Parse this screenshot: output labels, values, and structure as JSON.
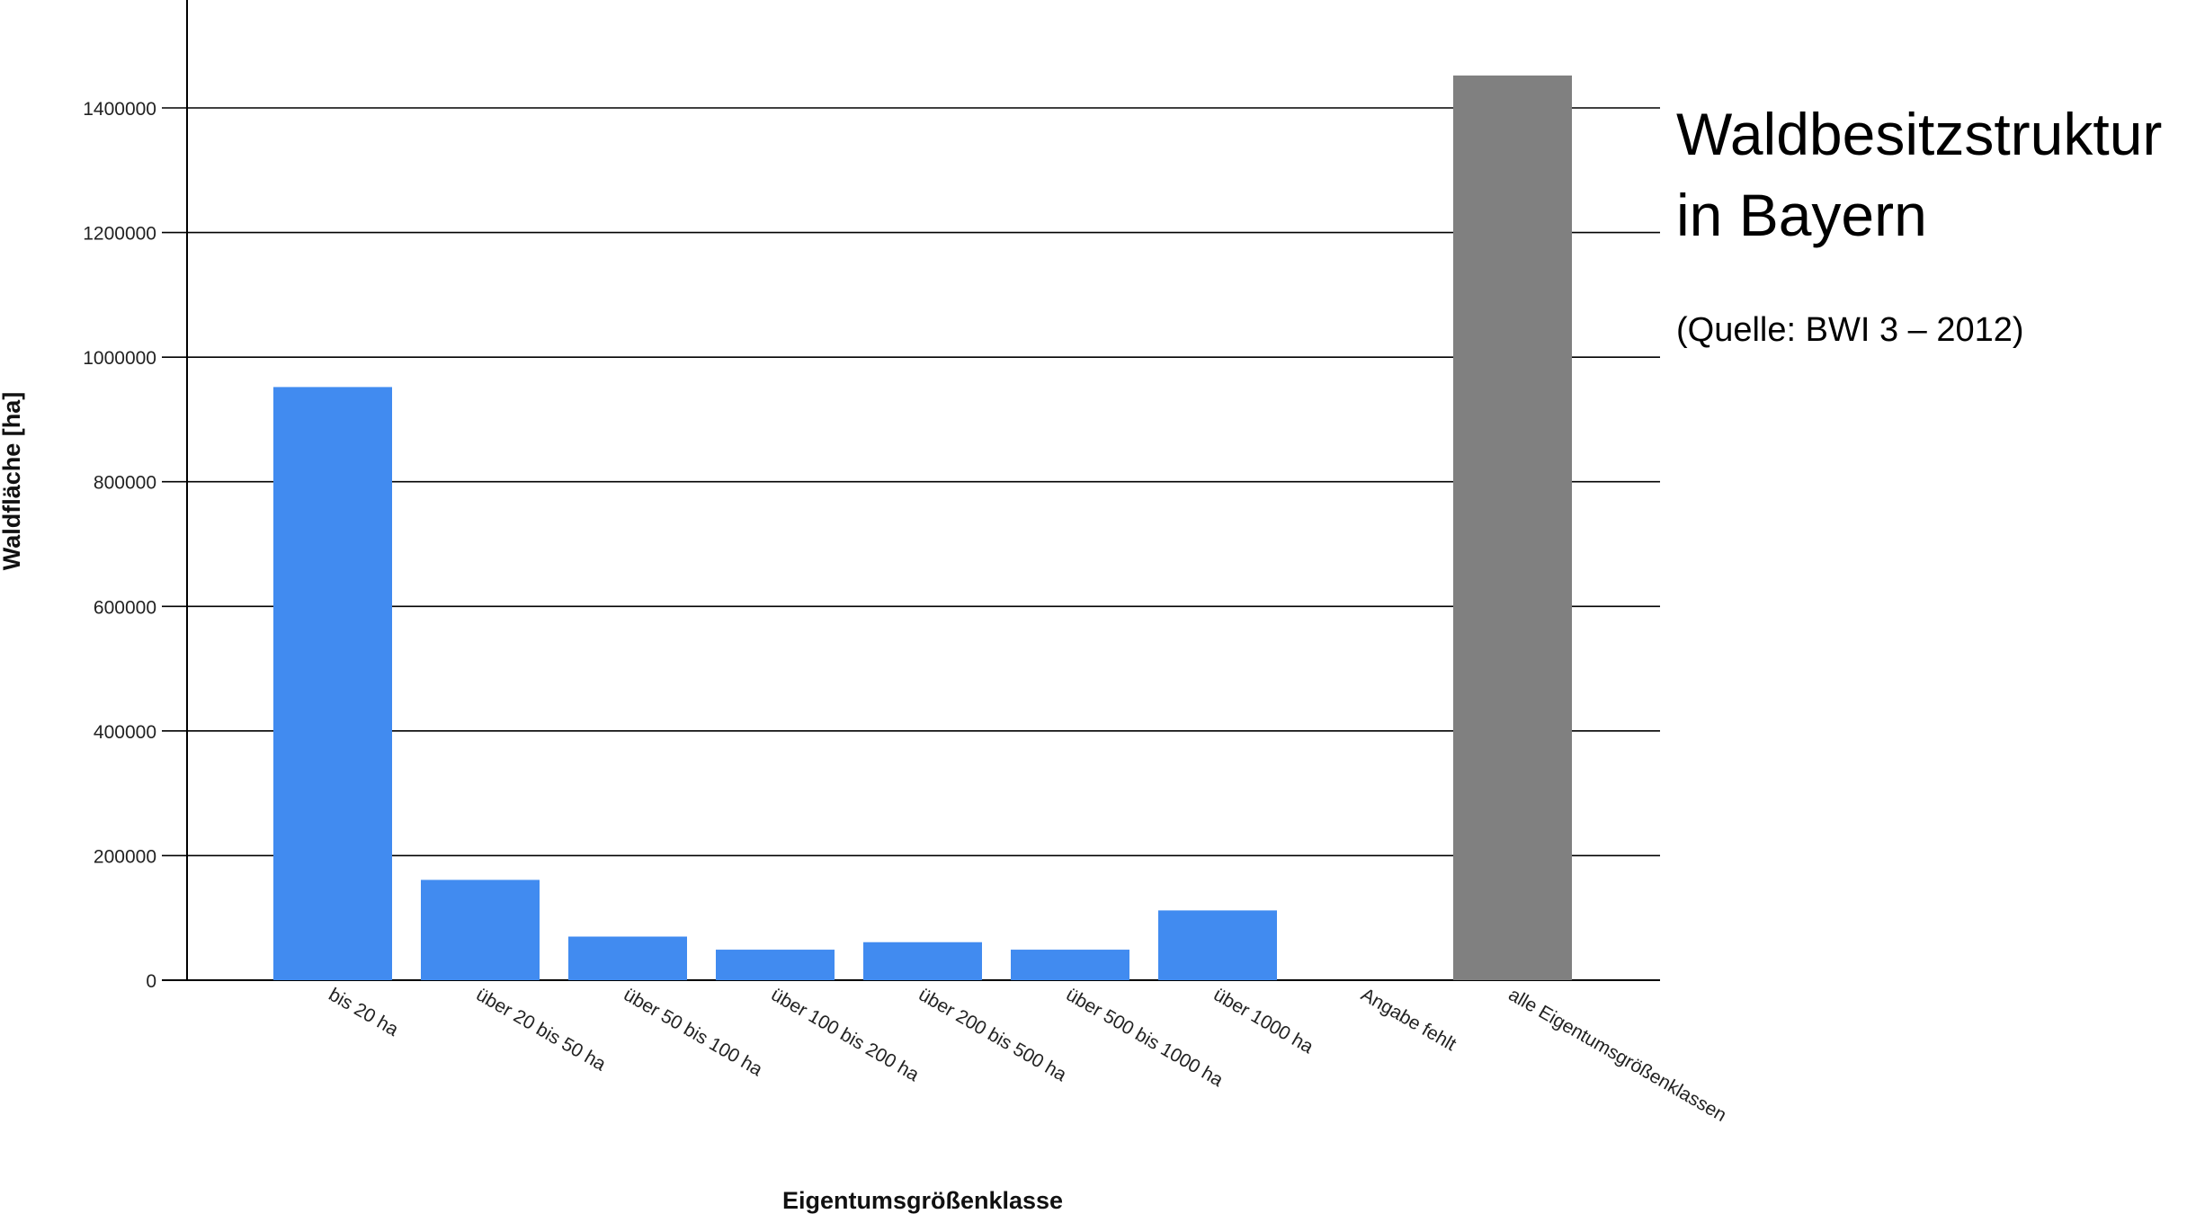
{
  "side_panel": {
    "title_line1": "Waldbesitzstruktur",
    "title_line2": "in Bayern",
    "source": "(Quelle: BWI 3 – 2012)"
  },
  "colors": {
    "bar_default": "#418bf0",
    "bar_total": "#808080",
    "grid": "#000000",
    "text": "#222222"
  },
  "chart_data": {
    "type": "bar",
    "title": "",
    "xlabel": "Eigentumsgrößenklasse",
    "ylabel": "Waldfläche [ha]",
    "ylim": [
      0,
      1500000
    ],
    "yticks": [
      0,
      200000,
      400000,
      600000,
      800000,
      1000000,
      1200000,
      1400000
    ],
    "ytick_labels": [
      "0",
      "200000",
      "400000",
      "600000",
      "800000",
      "1000000",
      "1200000",
      "1400000"
    ],
    "grid": true,
    "legend": "none",
    "categories": [
      "bis 20 ha",
      "über 20 bis 50 ha",
      "über 50 bis 100 ha",
      "über 100 bis 200 ha",
      "über 200 bis 500 ha",
      "über 500 bis 1000 ha",
      "über 1000 ha",
      "Angabe fehlt",
      "alle Eigentumsgrößenklassen"
    ],
    "values": [
      952000,
      161000,
      70000,
      49000,
      61000,
      49000,
      112000,
      0,
      1452000
    ],
    "highlight_index": 8
  }
}
